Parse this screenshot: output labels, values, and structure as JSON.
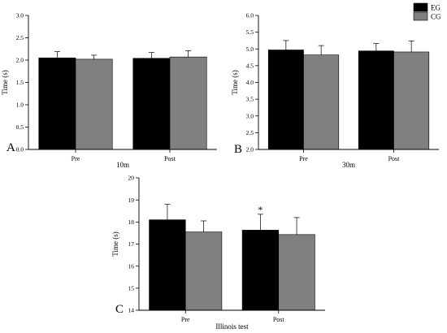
{
  "legend": {
    "entries": [
      {
        "label": "EG",
        "color": "#000000"
      },
      {
        "label": "CG",
        "color": "#808080"
      }
    ],
    "placement": "top-right"
  },
  "chart_data": [
    {
      "type": "bar",
      "panel_label": "A",
      "title": "10m",
      "ylabel": "Time (s)",
      "ylim": [
        0.0,
        3.0
      ],
      "yticks": [
        0.0,
        0.5,
        1.0,
        1.5,
        2.0,
        2.5,
        3.0
      ],
      "ytick_labels": [
        "0.0",
        "0.5",
        "1.0",
        "1.5",
        "2.0",
        "2.5",
        "3.0"
      ],
      "categories": [
        "Pre",
        "Post"
      ],
      "series": [
        {
          "name": "EG",
          "color": "#000000",
          "values": [
            2.05,
            2.04
          ],
          "errors": [
            0.14,
            0.13
          ]
        },
        {
          "name": "CG",
          "color": "#808080",
          "values": [
            2.02,
            2.07
          ],
          "errors": [
            0.09,
            0.14
          ]
        }
      ],
      "annotations": [],
      "grid": false
    },
    {
      "type": "bar",
      "panel_label": "B",
      "title": "30m",
      "ylabel": "Time (s)",
      "ylim": [
        2.0,
        6.0
      ],
      "yticks": [
        2.0,
        2.5,
        3.0,
        3.5,
        4.0,
        4.5,
        5.0,
        5.5,
        6.0
      ],
      "ytick_labels": [
        "2.0",
        "2.5",
        "3.0",
        "3.5",
        "4.0",
        "4.5",
        "5.0",
        "5.5",
        "6.0"
      ],
      "categories": [
        "Pre",
        "Post"
      ],
      "series": [
        {
          "name": "EG",
          "color": "#000000",
          "values": [
            4.97,
            4.94
          ],
          "errors": [
            0.28,
            0.22
          ]
        },
        {
          "name": "CG",
          "color": "#808080",
          "values": [
            4.82,
            4.91
          ],
          "errors": [
            0.28,
            0.33
          ]
        }
      ],
      "annotations": [],
      "grid": false
    },
    {
      "type": "bar",
      "panel_label": "C",
      "title": "Illinois test",
      "ylabel": "Time (s)",
      "ylim": [
        14,
        20
      ],
      "yticks": [
        14,
        15,
        16,
        17,
        18,
        19,
        20
      ],
      "ytick_labels": [
        "14",
        "15",
        "16",
        "17",
        "18",
        "19",
        "20"
      ],
      "categories": [
        "Pre",
        "Post"
      ],
      "series": [
        {
          "name": "EG",
          "color": "#000000",
          "values": [
            18.1,
            17.63
          ],
          "errors": [
            0.7,
            0.72
          ]
        },
        {
          "name": "CG",
          "color": "#808080",
          "values": [
            17.55,
            17.43
          ],
          "errors": [
            0.5,
            0.77
          ]
        }
      ],
      "annotations": [
        {
          "text": "*",
          "category": "Post",
          "series": "EG"
        }
      ],
      "grid": false
    }
  ]
}
